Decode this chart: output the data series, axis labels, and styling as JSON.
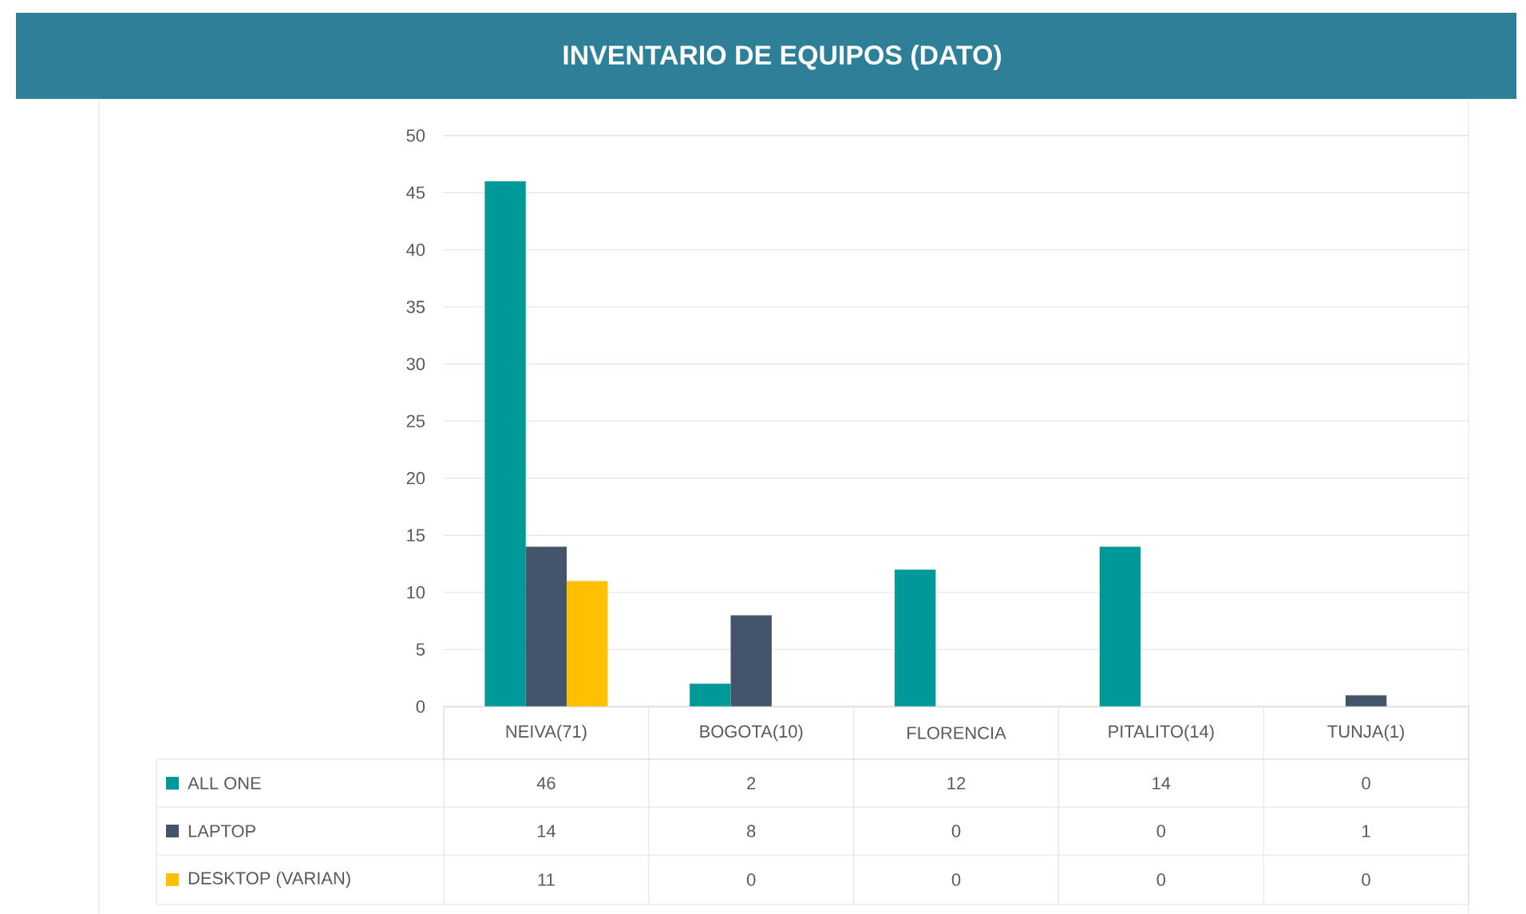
{
  "chart_data": {
    "type": "bar",
    "title": "INVENTARIO DE EQUIPOS (DATO)",
    "categories": [
      "NEIVA(71)",
      "BOGOTA(10)",
      "FLORENCIA",
      "PITALITO(14)",
      "TUNJA(1)"
    ],
    "series": [
      {
        "name": "ALL ONE",
        "color": "#009999",
        "values": [
          46,
          2,
          12,
          14,
          0
        ]
      },
      {
        "name": "LAPTOP",
        "color": "#44546a",
        "values": [
          14,
          8,
          0,
          0,
          1
        ]
      },
      {
        "name": "DESKTOP (VARIAN)",
        "color": "#ffc000",
        "values": [
          11,
          0,
          0,
          0,
          0
        ]
      }
    ],
    "ylim": [
      0,
      50
    ],
    "yticks": [
      0,
      5,
      10,
      15,
      20,
      25,
      30,
      35,
      40,
      45,
      50
    ],
    "grid": "y",
    "legend": "bottom",
    "data_labels": true
  }
}
